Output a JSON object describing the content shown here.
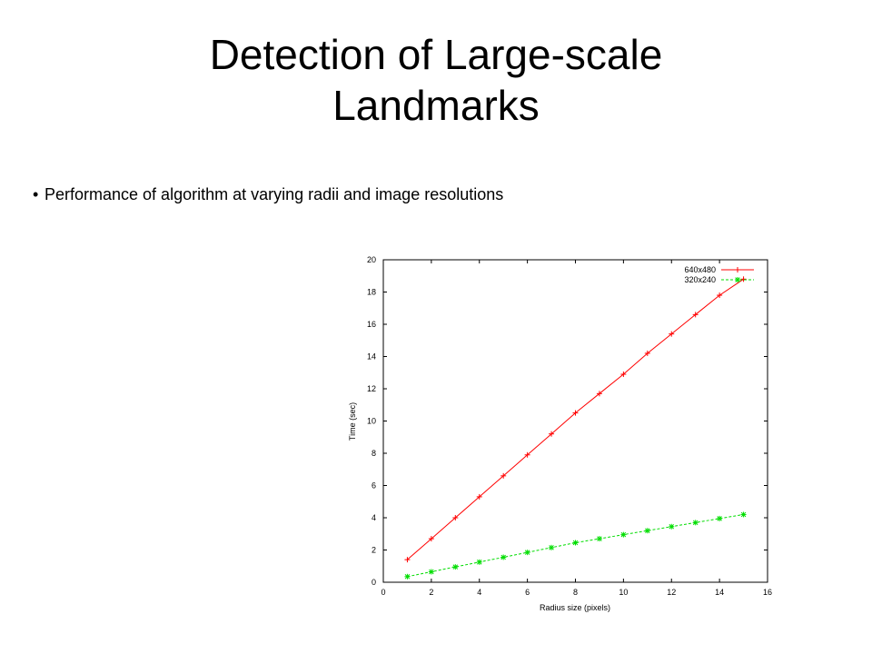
{
  "slide": {
    "title_line1": "Detection of Large-scale",
    "title_line2": "Landmarks",
    "bullets": [
      {
        "glyph": "•",
        "text": "Performance of algorithm at varying radii and image resolutions"
      }
    ]
  },
  "chart_data": {
    "type": "line",
    "xlabel": "Radius size (pixels)",
    "ylabel": "Time (sec)",
    "xlim": [
      0,
      16
    ],
    "ylim": [
      0,
      20
    ],
    "xticks": [
      0,
      2,
      4,
      6,
      8,
      10,
      12,
      14,
      16
    ],
    "yticks": [
      0,
      2,
      4,
      6,
      8,
      10,
      12,
      14,
      16,
      18,
      20
    ],
    "grid": false,
    "legend": "top-right",
    "series": [
      {
        "name": "640x480",
        "color": "#ff0000",
        "marker": "plus",
        "x": [
          1,
          2,
          3,
          4,
          5,
          6,
          7,
          8,
          9,
          10,
          11,
          12,
          13,
          14,
          15
        ],
        "y": [
          1.4,
          2.7,
          4.0,
          5.3,
          6.6,
          7.9,
          9.2,
          10.5,
          11.7,
          12.9,
          14.2,
          15.4,
          16.6,
          17.8,
          18.8
        ]
      },
      {
        "name": "320x240",
        "color": "#00dd00",
        "marker": "star",
        "x": [
          1,
          2,
          3,
          4,
          5,
          6,
          7,
          8,
          9,
          10,
          11,
          12,
          13,
          14,
          15
        ],
        "y": [
          0.35,
          0.65,
          0.95,
          1.25,
          1.55,
          1.85,
          2.15,
          2.45,
          2.7,
          2.95,
          3.2,
          3.45,
          3.7,
          3.95,
          4.2
        ]
      }
    ]
  }
}
